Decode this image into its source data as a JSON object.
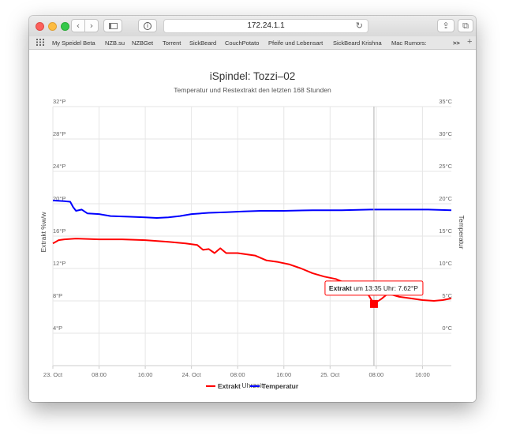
{
  "browser": {
    "address": "172.24.1.1",
    "bookmarks": [
      "My Speidel Beta",
      "NZB.su",
      "NZBGet",
      "Torrent",
      "SickBeard",
      "CouchPotato",
      "Pfeife und Lebensart",
      "SickBeard Krishna",
      "Mac Rumors:"
    ],
    "overflow_label": ">>",
    "add_label": "+"
  },
  "chart_data": {
    "type": "line",
    "title": "iSpindel: Tozzi–02",
    "subtitle": "Temperatur und Restextrakt den letzten 168 Stunden",
    "xlabel": "Uhrzeit",
    "ylabel_left": "Extrakt %w/w",
    "ylabel_right": "Temperatur",
    "x_ticks": [
      "23. Oct",
      "08:00",
      "16:00",
      "24. Oct",
      "08:00",
      "16:00",
      "25. Oct",
      "08:00",
      "16:00"
    ],
    "y_left_ticks": [
      "4°P",
      "8°P",
      "12°P",
      "16°P",
      "20°P",
      "24°P",
      "28°P",
      "32°P"
    ],
    "y_right_ticks": [
      "0°C",
      "5°C",
      "10°C",
      "15°C",
      "20°C",
      "25°C",
      "30°C",
      "35°C"
    ],
    "x_range_hours": [
      0,
      69
    ],
    "y_left_range": [
      0,
      32
    ],
    "y_right_range": [
      -5,
      35
    ],
    "grid": true,
    "legend_position": "bottom",
    "series": [
      {
        "name": "Extrakt",
        "axis": "left",
        "color": "#ff0000",
        "points": [
          [
            0,
            15.1
          ],
          [
            0.5,
            15.3
          ],
          [
            1,
            15.5
          ],
          [
            2,
            15.6
          ],
          [
            4,
            15.7
          ],
          [
            8,
            15.6
          ],
          [
            12,
            15.6
          ],
          [
            16,
            15.5
          ],
          [
            20,
            15.3
          ],
          [
            23,
            15.1
          ],
          [
            25,
            14.9
          ],
          [
            26,
            14.3
          ],
          [
            27,
            14.4
          ],
          [
            28,
            13.9
          ],
          [
            29,
            14.5
          ],
          [
            30,
            13.9
          ],
          [
            32,
            13.9
          ],
          [
            35,
            13.6
          ],
          [
            37,
            13.0
          ],
          [
            39,
            12.8
          ],
          [
            41,
            12.5
          ],
          [
            43,
            12.0
          ],
          [
            45,
            11.4
          ],
          [
            47,
            11.0
          ],
          [
            49,
            10.7
          ],
          [
            51,
            10.1
          ],
          [
            53,
            9.5
          ],
          [
            54.5,
            8.9
          ],
          [
            55.6,
            7.62
          ],
          [
            57,
            8.3
          ],
          [
            58,
            8.9
          ],
          [
            60,
            8.5
          ],
          [
            62,
            8.3
          ],
          [
            64,
            8.1
          ],
          [
            66,
            8.0
          ],
          [
            67.5,
            8.1
          ],
          [
            69,
            8.3
          ]
        ]
      },
      {
        "name": "Temperatur",
        "axis": "right",
        "color": "#0000ff",
        "points": [
          [
            0,
            20.5
          ],
          [
            2,
            20.4
          ],
          [
            3,
            20.3
          ],
          [
            3.5,
            19.5
          ],
          [
            4,
            18.9
          ],
          [
            5,
            19.1
          ],
          [
            6,
            18.5
          ],
          [
            8,
            18.4
          ],
          [
            10,
            18.1
          ],
          [
            13,
            18.0
          ],
          [
            16,
            17.9
          ],
          [
            18,
            17.8
          ],
          [
            20,
            17.9
          ],
          [
            22,
            18.1
          ],
          [
            24,
            18.4
          ],
          [
            27,
            18.6
          ],
          [
            30,
            18.7
          ],
          [
            33,
            18.8
          ],
          [
            36,
            18.9
          ],
          [
            40,
            18.9
          ],
          [
            45,
            19.0
          ],
          [
            50,
            19.0
          ],
          [
            55,
            19.1
          ],
          [
            60,
            19.1
          ],
          [
            65,
            19.1
          ],
          [
            69,
            19.0
          ]
        ]
      }
    ],
    "tooltip": {
      "series": "Extrakt",
      "text": "um 13:35 Uhr: 7.62°P",
      "x": 55.6,
      "y": 7.62
    }
  }
}
